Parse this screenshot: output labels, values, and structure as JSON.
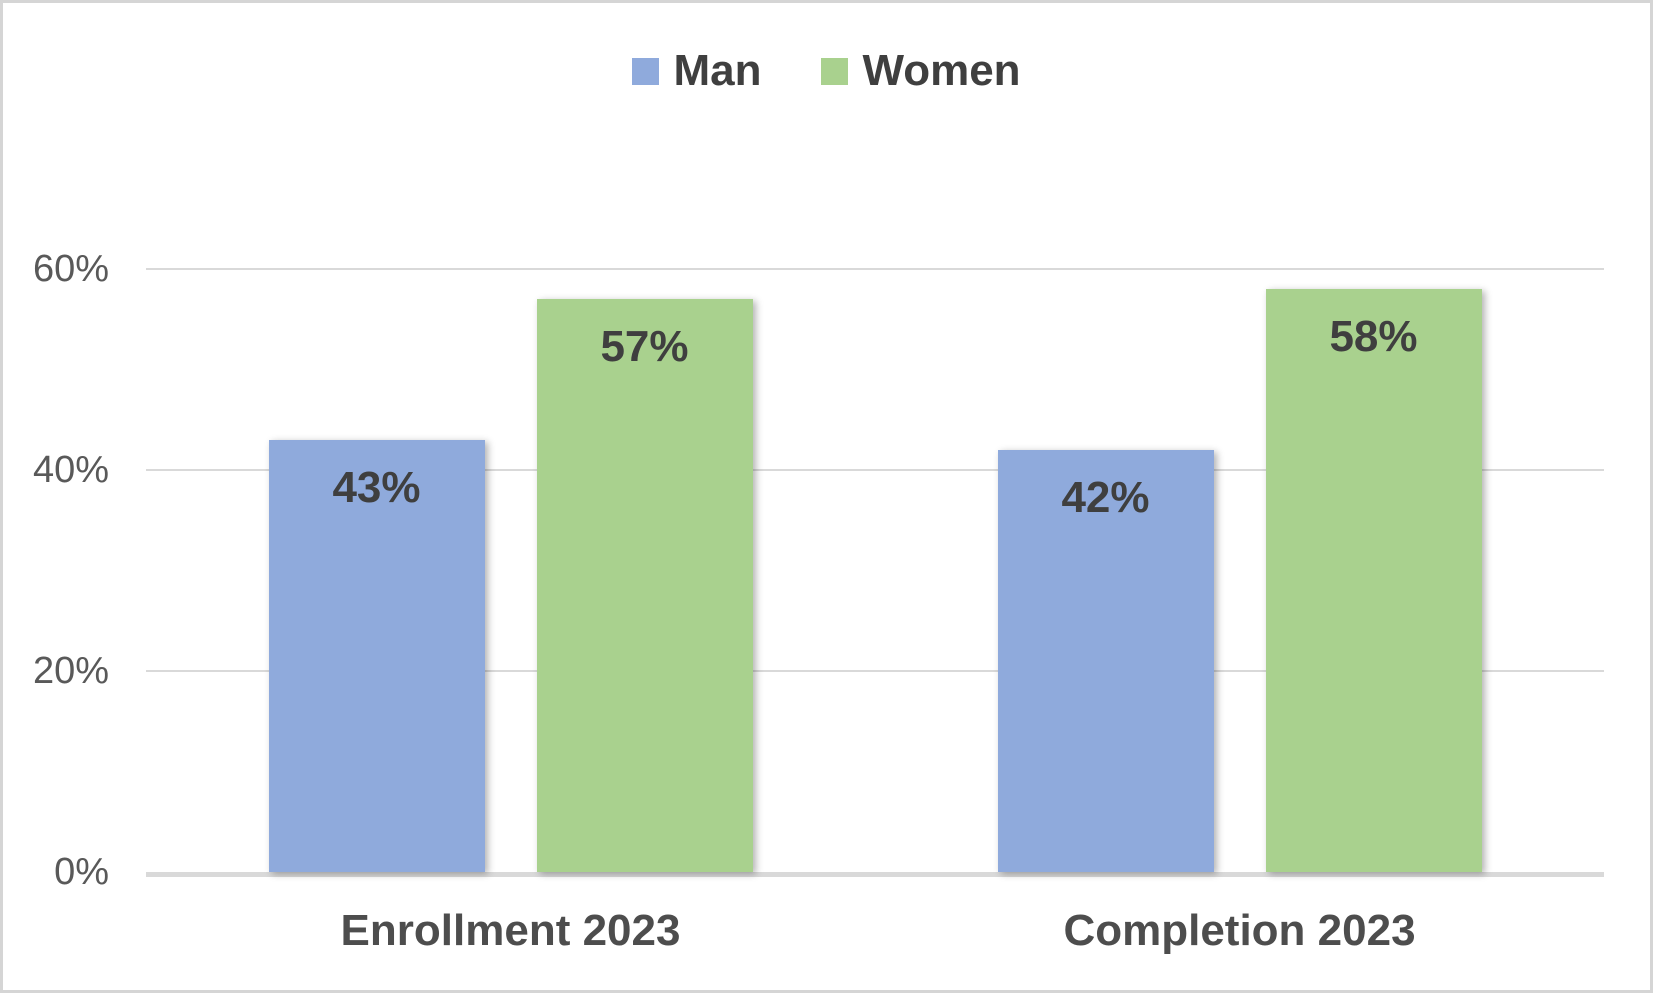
{
  "colors": {
    "man_series": "#8FAADC",
    "women_series": "#A9D18E",
    "gridline": "#D9D9D9",
    "axis_line": "#D9D9D9",
    "tick_text": "#595959",
    "data_label_text": "#3F3F3F",
    "category_text": "#4D4D4D",
    "border": "#D5D5D5",
    "background": "#FFFFFF"
  },
  "chart_data": {
    "type": "bar",
    "title": "",
    "categories": [
      "Enrollment 2023",
      "Completion 2023"
    ],
    "series": [
      {
        "name": "Man",
        "color": "#8FAADC",
        "values": [
          43,
          42
        ]
      },
      {
        "name": "Women",
        "color": "#A9D18E",
        "values": [
          57,
          58
        ]
      }
    ],
    "data_labels": [
      [
        "43%",
        "42%"
      ],
      [
        "57%",
        "58%"
      ]
    ],
    "value_suffix": "%",
    "ylim": [
      0,
      60
    ],
    "yticks": [
      0,
      20,
      40,
      60
    ],
    "ytick_labels": [
      "0%",
      "20%",
      "40%",
      "60%"
    ],
    "grid": true,
    "legend_position": "top"
  }
}
